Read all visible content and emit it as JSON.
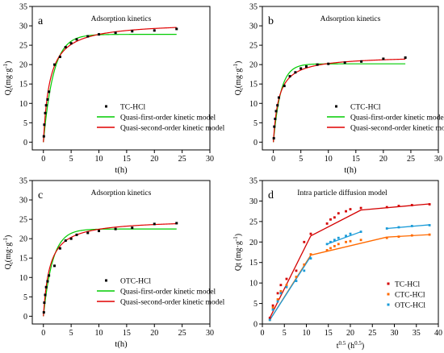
{
  "chart_data": [
    {
      "type": "scatter",
      "panel_letter": "a",
      "title": "Adsorption kinetics",
      "xlabel": "t(h)",
      "ylabel": "Q",
      "ylabel_sub": "t",
      "ylabel_unit": "(mg·g",
      "ylabel_exp": "-1",
      "xlim": [
        -2,
        30
      ],
      "ylim": [
        -2,
        35
      ],
      "xticks": [
        0,
        5,
        10,
        15,
        20,
        25,
        30
      ],
      "yticks": [
        0,
        5,
        10,
        15,
        20,
        25,
        30,
        35
      ],
      "legend_position": "lower-right",
      "series": [
        {
          "name": "TC-HCl",
          "kind": "points",
          "color": "#000000",
          "x": [
            0.083,
            0.17,
            0.33,
            0.5,
            0.75,
            1,
            2,
            3,
            4,
            5,
            6,
            8,
            10,
            13,
            16,
            20,
            24
          ],
          "y": [
            1.5,
            4.5,
            7.5,
            9.5,
            11.0,
            13.0,
            20.0,
            22.0,
            24.5,
            25.5,
            26.5,
            27.3,
            27.8,
            28.2,
            28.6,
            28.8,
            29.2
          ]
        },
        {
          "name": "Quasi-first-order kinetic model",
          "kind": "pfo",
          "color": "#00cc00",
          "qe": 27.8,
          "k": 0.55
        },
        {
          "name": "Quasi-second-order kinetic model",
          "kind": "pso",
          "color": "#e00000",
          "qe": 31.0,
          "k": 0.028
        }
      ]
    },
    {
      "type": "scatter",
      "panel_letter": "b",
      "title": "Adsorption kinetics",
      "xlabel": "t(h)",
      "ylabel": "Q",
      "ylabel_sub": "t",
      "ylabel_unit": "(mg·g",
      "ylabel_exp": "-1",
      "xlim": [
        -2,
        30
      ],
      "ylim": [
        -2,
        35
      ],
      "xticks": [
        0,
        5,
        10,
        15,
        20,
        25,
        30
      ],
      "yticks": [
        0,
        5,
        10,
        15,
        20,
        25,
        30,
        35
      ],
      "legend_position": "lower-right",
      "series": [
        {
          "name": "CTC-HCl",
          "kind": "points",
          "color": "#000000",
          "x": [
            0.083,
            0.17,
            0.33,
            0.5,
            0.75,
            1,
            2,
            3,
            4,
            5,
            6,
            8,
            10,
            13,
            16,
            20,
            24
          ],
          "y": [
            1.0,
            4.0,
            6.0,
            8.0,
            9.5,
            11.5,
            14.5,
            17.0,
            18.0,
            19.0,
            19.5,
            20.0,
            20.2,
            20.5,
            20.8,
            21.5,
            21.8
          ]
        },
        {
          "name": "Quasi-first-order kinetic model",
          "kind": "pfo",
          "color": "#00cc00",
          "qe": 20.2,
          "k": 0.75
        },
        {
          "name": "Quasi-second-order kinetic model",
          "kind": "pso",
          "color": "#e00000",
          "qe": 22.3,
          "k": 0.045
        }
      ]
    },
    {
      "type": "scatter",
      "panel_letter": "c",
      "title": "Adsorption kinetics",
      "xlabel": "t(h)",
      "ylabel": "Q",
      "ylabel_sub": "t",
      "ylabel_unit": "(mg·g",
      "ylabel_exp": "-1",
      "xlim": [
        -2,
        30
      ],
      "ylim": [
        -2,
        35
      ],
      "xticks": [
        0,
        5,
        10,
        15,
        20,
        25,
        30
      ],
      "yticks": [
        0,
        5,
        10,
        15,
        20,
        25,
        30,
        35
      ],
      "legend_position": "lower-right",
      "series": [
        {
          "name": "OTC-HCl",
          "kind": "points",
          "color": "#000000",
          "x": [
            0.083,
            0.17,
            0.33,
            0.5,
            0.75,
            1,
            2,
            3,
            4,
            5,
            6,
            8,
            10,
            13,
            16,
            20,
            24
          ],
          "y": [
            1.0,
            3.5,
            5.5,
            7.5,
            9.0,
            10.5,
            13.0,
            17.5,
            19.5,
            20.0,
            21.0,
            21.5,
            22.0,
            22.5,
            22.8,
            23.8,
            24.0
          ]
        },
        {
          "name": "Quasi-first-order kinetic model",
          "kind": "pfo",
          "color": "#00cc00",
          "qe": 22.5,
          "k": 0.6
        },
        {
          "name": "Quasi-second-order kinetic model",
          "kind": "pso",
          "color": "#e00000",
          "qe": 25.0,
          "k": 0.035
        }
      ]
    },
    {
      "type": "line",
      "panel_letter": "d",
      "title": "Intra particle diffusion model",
      "xlabel": "t",
      "xlabel_exp1": "0.5",
      "xlabel_unit": " (h",
      "xlabel_exp2": "0.5",
      "xlabel_close": ")",
      "ylabel": "Qt (mg·g",
      "ylabel_exp": "-1",
      "ylabel_close": ")",
      "xlim": [
        0,
        40
      ],
      "ylim": [
        0,
        35
      ],
      "xticks": [
        0,
        5,
        10,
        15,
        20,
        25,
        30,
        35,
        40
      ],
      "yticks": [
        0,
        5,
        10,
        15,
        20,
        25,
        30,
        35
      ],
      "legend_position": "lower-right",
      "series": [
        {
          "name": "TC-HCl",
          "color": "#d40000",
          "segments": [
            [
              [
                1.7,
                1.5
              ],
              [
                11,
                21.5
              ]
            ],
            [
              [
                11,
                21.5
              ],
              [
                22.4,
                27.8
              ]
            ],
            [
              [
                22.4,
                27.8
              ],
              [
                38,
                29.3
              ]
            ]
          ],
          "x": [
            1.7,
            2.4,
            3.5,
            4.2,
            5.5,
            7.7,
            9.5,
            11,
            14.7,
            15.5,
            16.4,
            17.3,
            19,
            20,
            22.4,
            28.3,
            31,
            34,
            38
          ],
          "y": [
            1.5,
            4.5,
            7.5,
            9.5,
            11,
            13,
            20,
            22,
            24.5,
            25.5,
            26,
            27,
            27.5,
            28,
            28.3,
            28.5,
            28.8,
            29,
            29.2
          ]
        },
        {
          "name": "CTC-HCl",
          "color": "#ff6a00",
          "segments": [
            [
              [
                1.7,
                1.0
              ],
              [
                11,
                16.8
              ]
            ],
            [
              [
                11,
                16.8
              ],
              [
                28.3,
                21.2
              ]
            ],
            [
              [
                28.3,
                21.2
              ],
              [
                38,
                21.8
              ]
            ]
          ],
          "x": [
            1.7,
            2.4,
            3.5,
            4.2,
            5.5,
            7.7,
            9.5,
            11,
            14.7,
            15.5,
            16.4,
            17.3,
            19,
            20,
            22.4,
            28.3,
            31,
            34,
            38
          ],
          "y": [
            1.0,
            4.0,
            6.0,
            8.0,
            9.5,
            11.5,
            14.5,
            17.0,
            18.0,
            18.5,
            19.0,
            19.5,
            20.0,
            20.2,
            20.5,
            21.0,
            21.3,
            21.6,
            21.8
          ]
        },
        {
          "name": "OTC-HCl",
          "color": "#1a9bd8",
          "segments": [
            [
              [
                1.7,
                1.0
              ],
              [
                11,
                16.5
              ]
            ],
            [
              [
                14.7,
                19.5
              ],
              [
                22.4,
                22.5
              ]
            ],
            [
              [
                28.3,
                23.3
              ],
              [
                38,
                24.2
              ]
            ]
          ],
          "x": [
            1.7,
            2.4,
            3.5,
            4.2,
            5.5,
            7.7,
            9.5,
            11,
            14.7,
            15.5,
            16.4,
            17.3,
            19,
            20,
            22.4,
            28.3,
            31,
            34,
            38
          ],
          "y": [
            1.0,
            3.5,
            5.5,
            7.5,
            9.0,
            10.5,
            13.0,
            16.0,
            19.5,
            20.0,
            20.5,
            21.0,
            21.5,
            22.0,
            22.5,
            23.3,
            23.6,
            23.9,
            24.1
          ]
        }
      ]
    }
  ]
}
